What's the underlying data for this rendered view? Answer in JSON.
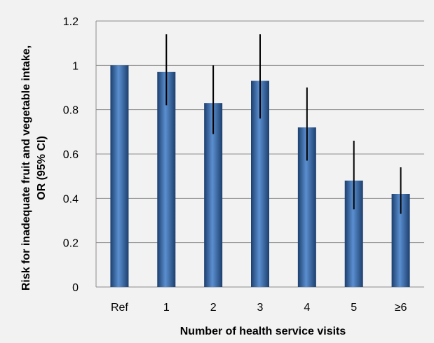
{
  "chart_data": {
    "type": "bar",
    "title": "",
    "xlabel": "Number of health service visits",
    "ylabel_line1": "Risk for inadequate fruit and vegetable intake,",
    "ylabel_line2": "OR (95% CI)",
    "categories": [
      "Ref",
      "1",
      "2",
      "3",
      "4",
      "5",
      "≥6"
    ],
    "values": [
      1.0,
      0.97,
      0.83,
      0.93,
      0.72,
      0.48,
      0.42
    ],
    "ci_low": [
      null,
      0.82,
      0.69,
      0.76,
      0.57,
      0.35,
      0.33
    ],
    "ci_high": [
      null,
      1.14,
      1.0,
      1.14,
      0.9,
      0.66,
      0.54
    ],
    "ylim": [
      0,
      1.2
    ],
    "yticks": [
      "0",
      "0.2",
      "0.4",
      "0.6",
      "0.8",
      "1",
      "1.2"
    ],
    "grid": true,
    "legend": "none",
    "colors": {
      "bar": "#2e5f9e",
      "bar_light": "#5b8fd0",
      "bar_dark": "#1c3f6e",
      "errorbar": "#000000",
      "grid": "#8c8c8c",
      "background": "#f2f2f2"
    }
  }
}
